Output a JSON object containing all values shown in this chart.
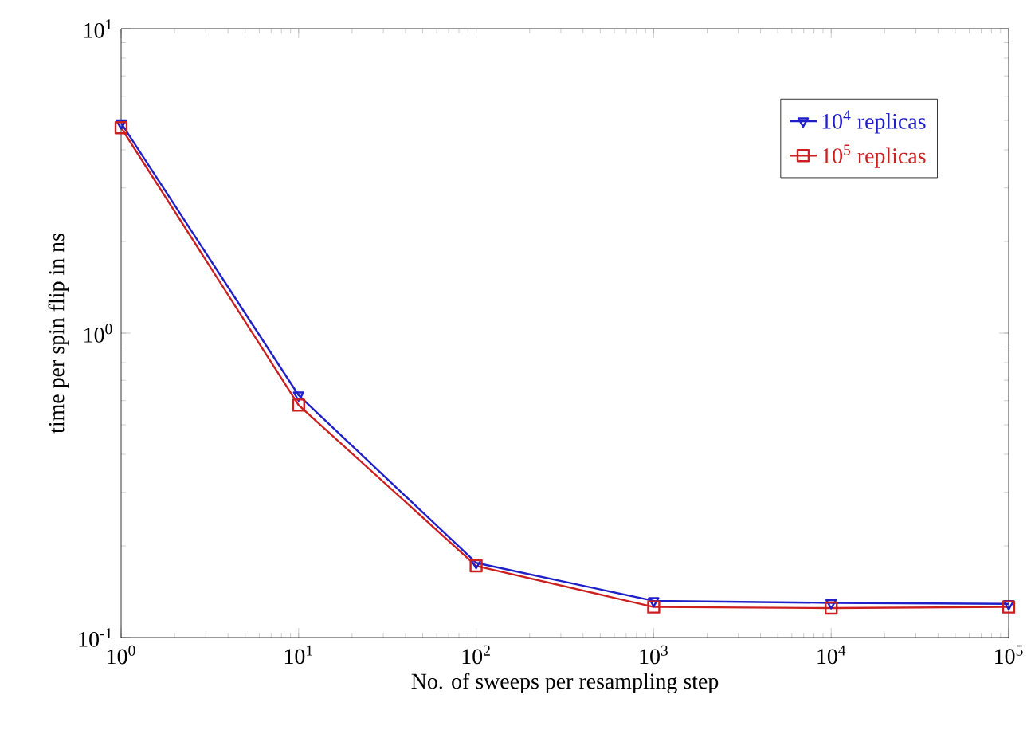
{
  "chart_data": {
    "type": "line",
    "xlabel": "No. of sweeps per resampling step",
    "ylabel": "time per spin flip in ns",
    "x": [
      1,
      10,
      100,
      1000,
      10000,
      100000
    ],
    "series": [
      {
        "name": "10$^{4}$ replicas",
        "color": "#2020c8",
        "marker": "triangle",
        "values": [
          4.9,
          0.625,
          0.176,
          0.132,
          0.13,
          0.129
        ]
      },
      {
        "name": "10$^{5}$ replicas",
        "color": "#cc2020",
        "marker": "square",
        "values": [
          4.73,
          0.58,
          0.172,
          0.126,
          0.125,
          0.126
        ]
      }
    ],
    "log": "xy",
    "xlim": [
      1,
      100000
    ],
    "ylim": [
      0.1,
      10
    ],
    "xticks": [
      {
        "value": 1,
        "label": "10$^{0}$"
      },
      {
        "value": 10,
        "label": "10$^{1}$"
      },
      {
        "value": 100,
        "label": "10$^{2}$"
      },
      {
        "value": 1000,
        "label": "10$^{3}$"
      },
      {
        "value": 10000,
        "label": "10$^{4}$"
      },
      {
        "value": 100000,
        "label": "10$^{5}$"
      }
    ],
    "yticks": [
      {
        "value": 0.1,
        "label": "10$^{-1}$"
      },
      {
        "value": 1,
        "label": "10$^{0}$"
      },
      {
        "value": 10,
        "label": "10$^{1}$"
      }
    ],
    "legend": "top right",
    "line_style": "solid"
  }
}
